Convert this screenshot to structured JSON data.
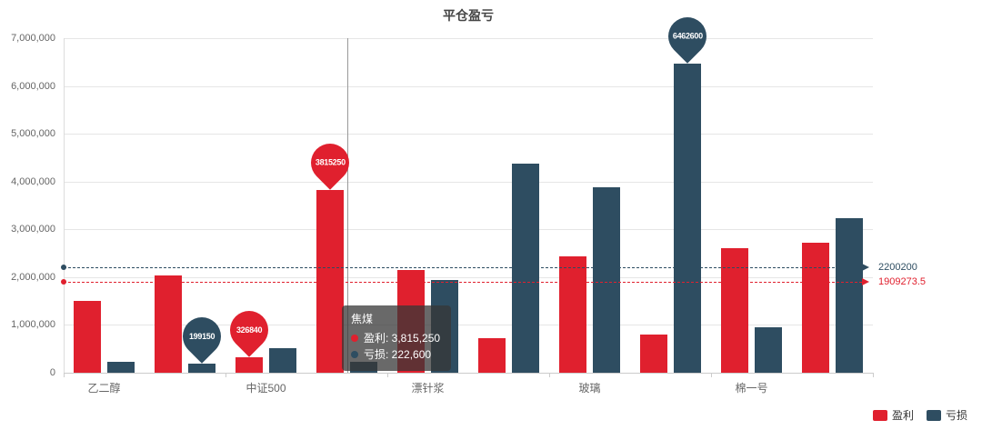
{
  "title": "平仓盈亏",
  "y_axis": {
    "step": 1000000,
    "tick_labels": [
      "0",
      "1,000,000",
      "2,000,000",
      "3,000,000",
      "4,000,000",
      "5,000,000",
      "6,000,000",
      "7,000,000"
    ]
  },
  "legend": [
    {
      "label": "盈利",
      "color": "#e0202e"
    },
    {
      "label": "亏损",
      "color": "#2e4d61"
    }
  ],
  "chart_data": {
    "type": "bar",
    "title": "平仓盈亏",
    "categories": [
      "乙二醇",
      "",
      "中证500",
      "焦煤",
      "漂针浆",
      "",
      "玻璃",
      "",
      "棉一号",
      ""
    ],
    "x_axis_labels": [
      {
        "label": "乙二醇",
        "category_index": 0
      },
      {
        "label": "中证500",
        "category_index": 2
      },
      {
        "label": "漂针浆",
        "category_index": 4
      },
      {
        "label": "玻璃",
        "category_index": 6
      },
      {
        "label": "棉一号",
        "category_index": 8
      }
    ],
    "ylim": [
      0,
      7000000
    ],
    "grid": true,
    "legend_position": "bottom-right",
    "series": [
      {
        "name": "盈利",
        "color": "#e0202e",
        "values": [
          1500000,
          2030000,
          326840,
          3815250,
          2140000,
          730000,
          2430000,
          800645,
          2600000,
          2720000
        ]
      },
      {
        "name": "亏损",
        "color": "#2e4d61",
        "values": [
          220000,
          199150,
          510000,
          222600,
          1937650,
          4370000,
          3880000,
          6462600,
          960000,
          3240000
        ]
      }
    ],
    "mark_points": [
      {
        "series": "盈利",
        "category_index": 3,
        "value": 3815250,
        "label": "3815250"
      },
      {
        "series": "盈利",
        "category_index": 2,
        "value": 326840,
        "label": "326840"
      },
      {
        "series": "亏损",
        "category_index": 1,
        "value": 199150,
        "label": "199150"
      },
      {
        "series": "亏损",
        "category_index": 7,
        "value": 6462600,
        "label": "6462600"
      }
    ],
    "mark_lines": [
      {
        "series": "亏损",
        "value": 2200200,
        "label": "2200200"
      },
      {
        "series": "盈利",
        "value": 1909273.5,
        "label": "1909273.5"
      }
    ],
    "tooltip": {
      "category": "焦煤",
      "category_index": 3,
      "rows": [
        {
          "name": "盈利",
          "value": "3,815,250",
          "color": "#e0202e"
        },
        {
          "name": "亏损",
          "value": "222,600",
          "color": "#2e4d61"
        }
      ]
    }
  }
}
